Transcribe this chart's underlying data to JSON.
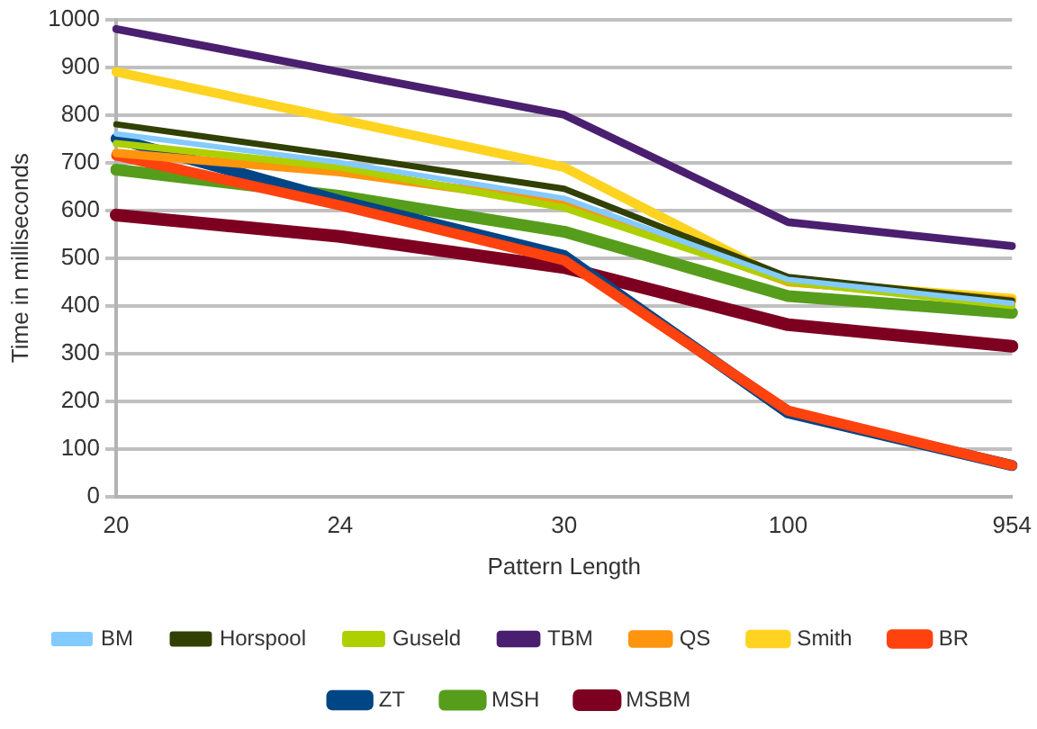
{
  "chart_data": {
    "type": "line",
    "xlabel": "Pattern Length",
    "ylabel": "Time in milliseconds",
    "categories": [
      "20",
      "24",
      "30",
      "100",
      "954"
    ],
    "ylim": [
      0,
      1000
    ],
    "yticks": [
      0,
      100,
      200,
      300,
      400,
      500,
      600,
      700,
      800,
      900,
      1000
    ],
    "grid": "y",
    "legend": "bottom",
    "marker": "none",
    "line_style": "solid",
    "series": [
      {
        "name": "BM",
        "color": "#83caff",
        "values": [
          760,
          700,
          625,
          455,
          405
        ]
      },
      {
        "name": "Horspool",
        "color": "#314004",
        "values": [
          780,
          715,
          645,
          460,
          410
        ]
      },
      {
        "name": "Guseld",
        "color": "#aecf00",
        "values": [
          740,
          690,
          605,
          450,
          400
        ]
      },
      {
        "name": "TBM",
        "color": "#4b1f6f",
        "values": [
          980,
          890,
          800,
          575,
          525
        ]
      },
      {
        "name": "QS",
        "color": "#ff950e",
        "values": [
          720,
          680,
          615,
          450,
          410
        ]
      },
      {
        "name": "Smith",
        "color": "#ffd320",
        "values": [
          890,
          790,
          690,
          450,
          415
        ]
      },
      {
        "name": "BR",
        "color": "#ff420e",
        "values": [
          715,
          610,
          495,
          180,
          65
        ]
      },
      {
        "name": "ZT",
        "color": "#004586",
        "values": [
          750,
          620,
          505,
          175,
          65
        ]
      },
      {
        "name": "MSH",
        "color": "#579d1c",
        "values": [
          685,
          630,
          555,
          420,
          385
        ]
      },
      {
        "name": "MSBM",
        "color": "#7e0021",
        "values": [
          590,
          545,
          480,
          360,
          315
        ]
      }
    ]
  }
}
